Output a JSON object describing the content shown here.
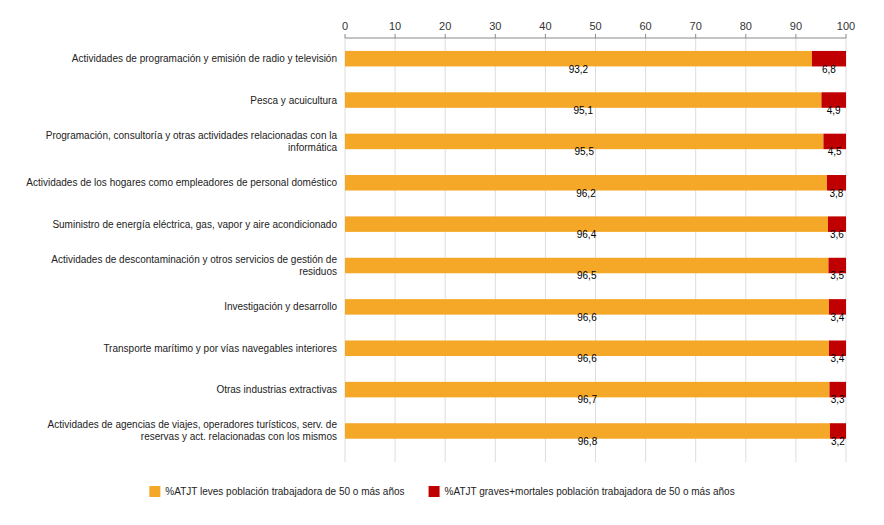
{
  "chart_data": {
    "type": "bar",
    "orientation": "horizontal",
    "stacked": true,
    "categories": [
      "Actividades de agencias de viajes, operadores turísticos, serv. de\nreservas y act. relacionadas con los mismos",
      "Otras industrias extractivas",
      "Transporte marítimo y por vías navegables interiores",
      "Investigación y desarrollo",
      "Actividades de descontaminación y otros servicios de gestión de\nresiduos",
      "Suministro de energía eléctrica, gas, vapor y aire acondicionado",
      "Actividades de los hogares como empleadores de personal doméstico",
      "Programación, consultoría y otras actividades relacionadas con la\ninformática",
      "Pesca y acuicultura",
      "Actividades de programación y emisión de radio y televisión"
    ],
    "series": [
      {
        "name": "%ATJT leves población trabajadora de 50 o más años",
        "color": "#F5A828",
        "values": [
          96.8,
          96.7,
          96.6,
          96.6,
          96.5,
          96.4,
          96.2,
          95.5,
          95.1,
          93.2
        ],
        "value_labels": [
          "96,8",
          "96,7",
          "96,6",
          "96,6",
          "96,5",
          "96,4",
          "96,2",
          "95,5",
          "95,1",
          "93,2"
        ]
      },
      {
        "name": "%ATJT graves+mortales población trabajadora de 50 o más años",
        "color": "#C00000",
        "values": [
          3.2,
          3.3,
          3.4,
          3.4,
          3.5,
          3.6,
          3.8,
          4.5,
          4.9,
          6.8
        ],
        "value_labels": [
          "3,2",
          "3,3",
          "3,4",
          "3,4",
          "3,5",
          "3,6",
          "3,8",
          "4,5",
          "4,9",
          "6,8"
        ]
      }
    ],
    "xlim": [
      0,
      100
    ],
    "xticks": [
      0,
      10,
      20,
      30,
      40,
      50,
      60,
      70,
      80,
      90,
      100
    ],
    "grid": true,
    "legend": "bottom",
    "data_labels": true
  }
}
